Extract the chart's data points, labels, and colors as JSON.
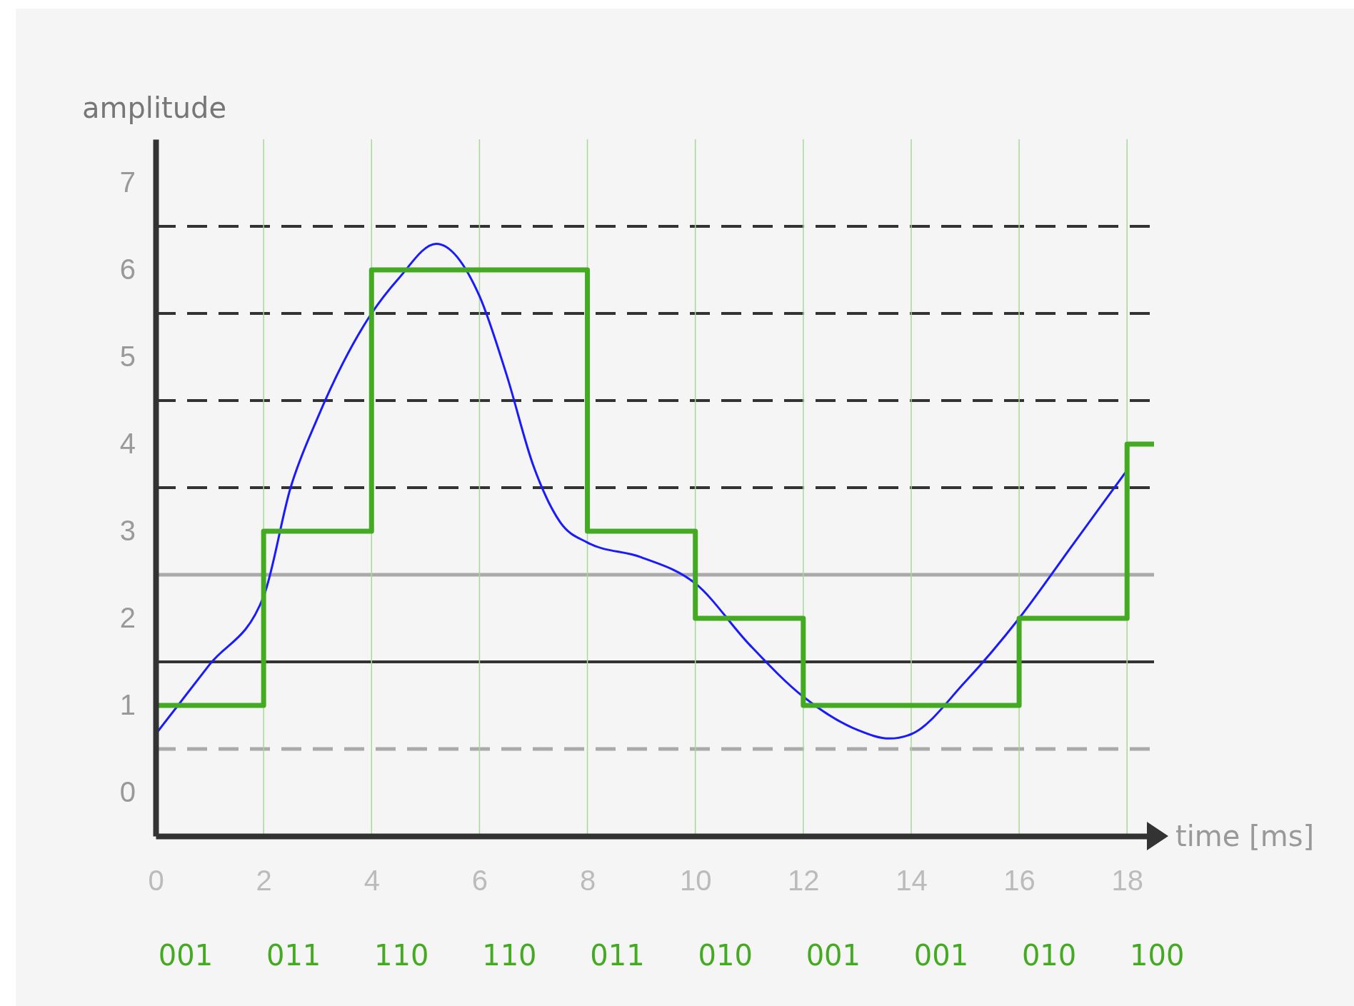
{
  "chart_data": {
    "type": "line",
    "xlabel": "time [ms]",
    "ylabel": "amplitude",
    "xlim": [
      0,
      18.5
    ],
    "xticks": [
      0,
      2,
      4,
      6,
      8,
      10,
      12,
      14,
      16,
      18
    ],
    "ylim": [
      -0.5,
      7.5
    ],
    "yticks": [
      0,
      1,
      2,
      3,
      4,
      5,
      6,
      7
    ],
    "grid": false,
    "marker": "none",
    "annotations": [
      "001",
      "011",
      "110",
      "110",
      "011",
      "010",
      "001",
      "001",
      "010",
      "100"
    ],
    "ref_lines": [
      {
        "axis": "y",
        "value": 6.5,
        "color": "#333333",
        "line_style": "dashed"
      },
      {
        "axis": "y",
        "value": 5.5,
        "color": "#333333",
        "line_style": "dashed"
      },
      {
        "axis": "y",
        "value": 4.5,
        "color": "#333333",
        "line_style": "dashed"
      },
      {
        "axis": "y",
        "value": 3.5,
        "color": "#333333",
        "line_style": "dashed"
      },
      {
        "axis": "y",
        "value": 2.5,
        "color": "#aaaaaa",
        "line_style": "solid"
      },
      {
        "axis": "y",
        "value": 1.5,
        "color": "#333333",
        "line_style": "solid"
      },
      {
        "axis": "y",
        "value": 0.5,
        "color": "#aaaaaa",
        "line_style": "dashed"
      },
      {
        "axis": "x",
        "value": 2,
        "color": "#a8d898",
        "line_style": "solid"
      },
      {
        "axis": "x",
        "value": 4,
        "color": "#a8d898",
        "line_style": "solid"
      },
      {
        "axis": "x",
        "value": 6,
        "color": "#a8d898",
        "line_style": "solid"
      },
      {
        "axis": "x",
        "value": 8,
        "color": "#a8d898",
        "line_style": "solid"
      },
      {
        "axis": "x",
        "value": 10,
        "color": "#a8d898",
        "line_style": "solid"
      },
      {
        "axis": "x",
        "value": 12,
        "color": "#a8d898",
        "line_style": "solid"
      },
      {
        "axis": "x",
        "value": 14,
        "color": "#a8d898",
        "line_style": "solid"
      },
      {
        "axis": "x",
        "value": 16,
        "color": "#a8d898",
        "line_style": "solid"
      },
      {
        "axis": "x",
        "value": 18,
        "color": "#a8d898",
        "line_style": "solid"
      }
    ],
    "series": [
      {
        "color": "#1a1aff",
        "x": [
          0,
          1,
          2,
          2.5,
          3,
          4,
          4.5,
          5.2,
          6,
          6.5,
          7,
          7.5,
          8,
          9,
          10,
          11,
          12,
          13,
          13.6,
          14,
          15,
          16,
          17,
          18
        ],
        "values": [
          0.67,
          1.47,
          2.25,
          3.5,
          4.3,
          5.5,
          5.9,
          6.3,
          5.7,
          4.8,
          3.75,
          3.1,
          2.87,
          2.7,
          2.4,
          1.7,
          1.1,
          0.72,
          0.62,
          0.67,
          1.27,
          2.0,
          2.85,
          3.7
        ]
      },
      {
        "type": "step",
        "color": "#44aa22",
        "x": [
          0,
          2,
          4,
          6,
          8,
          10,
          12,
          14,
          16,
          18,
          18.5
        ],
        "values": [
          1,
          3,
          6,
          6,
          3,
          2,
          1,
          1,
          2,
          4,
          4
        ]
      }
    ]
  }
}
